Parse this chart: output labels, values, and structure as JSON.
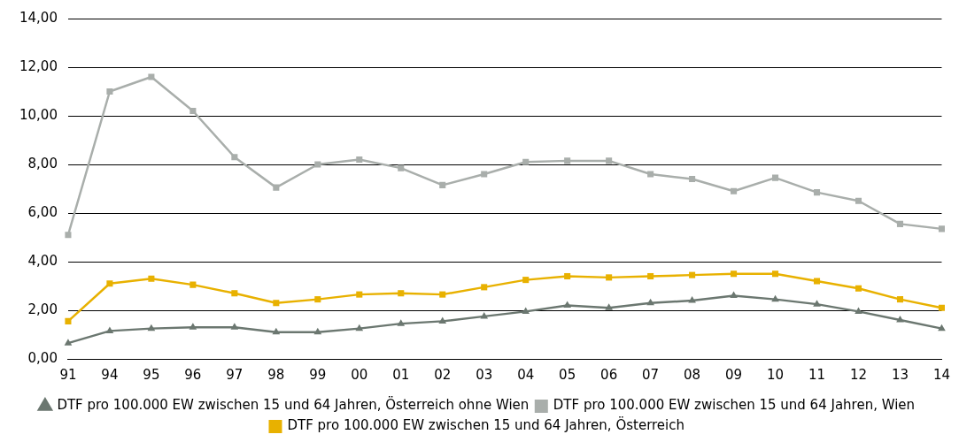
{
  "chart_data": {
    "type": "line",
    "categories": [
      "91",
      "94",
      "95",
      "96",
      "97",
      "98",
      "99",
      "00",
      "01",
      "02",
      "03",
      "04",
      "05",
      "06",
      "07",
      "08",
      "09",
      "10",
      "11",
      "12",
      "13",
      "14"
    ],
    "series": [
      {
        "name": "DTF pro 100.000 EW zwischen 15 und 64 Jahren, Österreich ohne Wien",
        "color": "#6b7770",
        "marker": "triangle",
        "values": [
          0.65,
          1.15,
          1.25,
          1.3,
          1.3,
          1.1,
          1.1,
          1.25,
          1.45,
          1.55,
          1.75,
          1.95,
          2.2,
          2.1,
          2.3,
          2.4,
          2.6,
          2.45,
          2.25,
          1.95,
          1.6,
          1.25
        ]
      },
      {
        "name": "DTF pro 100.000 EW zwischen 15 und 64 Jahren, Wien",
        "color": "#a9aeab",
        "marker": "square",
        "values": [
          5.1,
          11.0,
          11.6,
          10.2,
          8.3,
          7.05,
          8.0,
          8.2,
          7.85,
          7.15,
          7.6,
          8.1,
          8.15,
          8.15,
          7.6,
          7.4,
          6.9,
          7.45,
          6.85,
          6.5,
          5.55,
          5.35
        ]
      },
      {
        "name": "DTF pro 100.000 EW zwischen 15 und 64 Jahren, Österreich",
        "color": "#e8b100",
        "marker": "square",
        "values": [
          1.55,
          3.1,
          3.3,
          3.05,
          2.7,
          2.3,
          2.45,
          2.65,
          2.7,
          2.65,
          2.95,
          3.25,
          3.4,
          3.35,
          3.4,
          3.45,
          3.5,
          3.5,
          3.2,
          2.9,
          2.45,
          2.1
        ]
      }
    ],
    "ylim": [
      0,
      14
    ],
    "yticks": [
      {
        "value": 0,
        "label": "0,00"
      },
      {
        "value": 2,
        "label": "2,00"
      },
      {
        "value": 4,
        "label": "4,00"
      },
      {
        "value": 6,
        "label": "6,00"
      },
      {
        "value": 8,
        "label": "8,00"
      },
      {
        "value": 10,
        "label": "10,00"
      },
      {
        "value": 12,
        "label": "12,00"
      },
      {
        "value": 14,
        "label": "14,00"
      }
    ],
    "grid": "y",
    "legend": "bottom",
    "line_style": "solid"
  }
}
